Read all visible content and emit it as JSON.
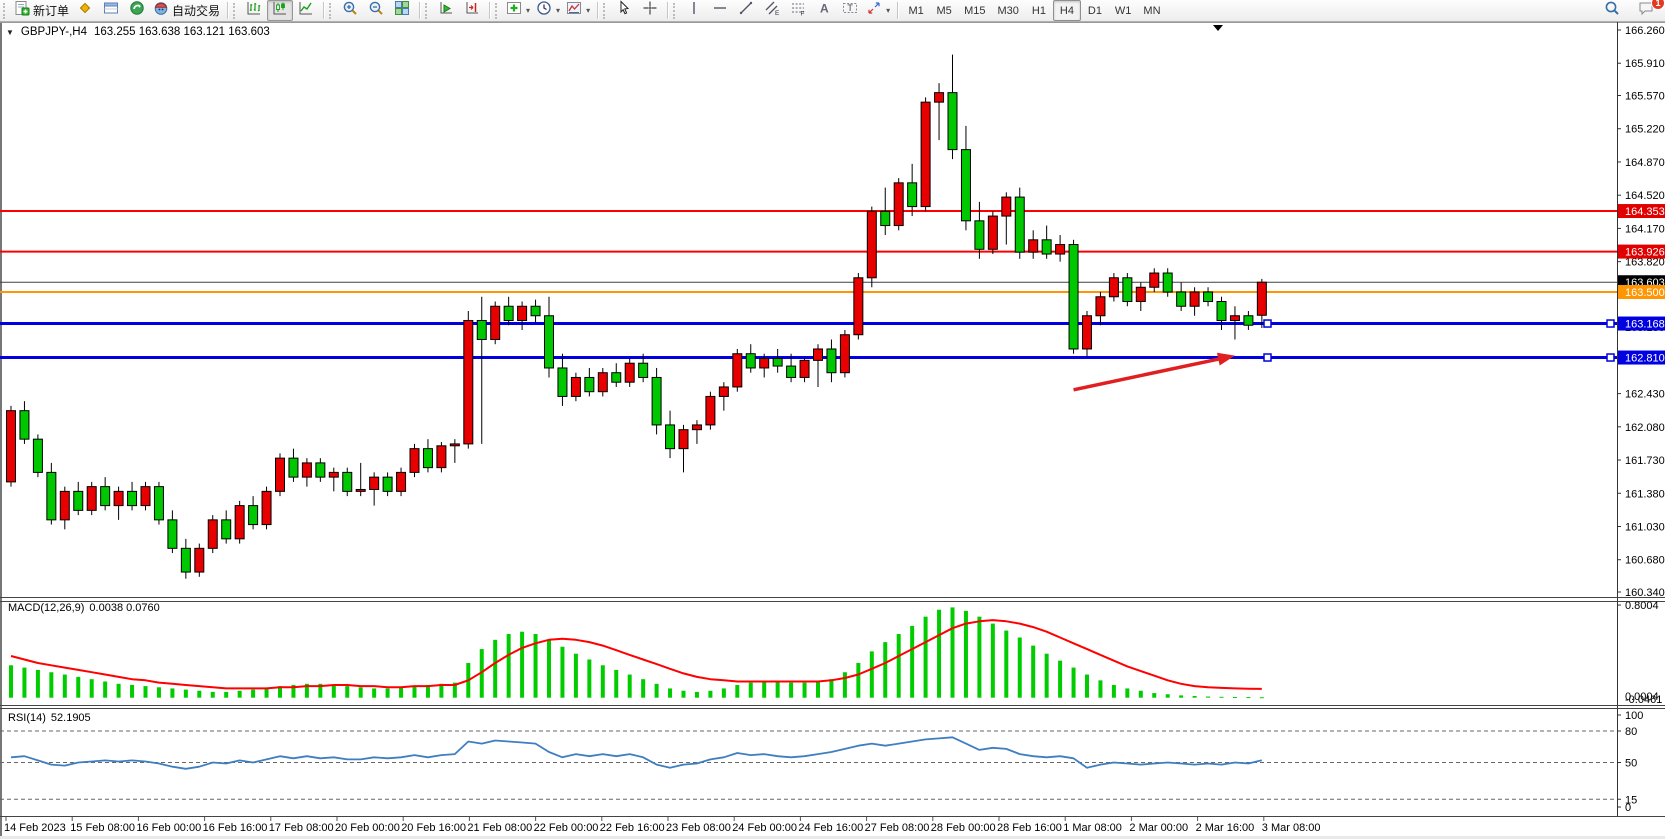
{
  "toolbar": {
    "groups": [
      {
        "name": "trade",
        "items": [
          {
            "name": "new-order",
            "icon": "new-order-icon",
            "label": "新订单"
          },
          {
            "name": "market-watch",
            "icon": "market-watch-icon"
          },
          {
            "name": "data-window",
            "icon": "data-window-icon"
          },
          {
            "name": "navigator",
            "icon": "navigator-icon"
          },
          {
            "name": "auto-trading",
            "icon": "auto-trading-icon",
            "label": "自动交易"
          }
        ]
      },
      {
        "name": "chart-type",
        "items": [
          {
            "name": "bar-chart",
            "icon": "bar-chart-icon"
          },
          {
            "name": "candlestick-chart",
            "icon": "candlestick-chart-icon",
            "active": true
          },
          {
            "name": "line-chart",
            "icon": "line-chart-icon"
          }
        ]
      },
      {
        "name": "zoom",
        "items": [
          {
            "name": "zoom-in",
            "icon": "zoom-in-icon"
          },
          {
            "name": "zoom-out",
            "icon": "zoom-out-icon"
          },
          {
            "name": "tile-windows",
            "icon": "tile-windows-icon"
          }
        ]
      },
      {
        "name": "scroll",
        "items": [
          {
            "name": "auto-scroll",
            "icon": "auto-scroll-icon"
          },
          {
            "name": "chart-shift",
            "icon": "chart-shift-icon"
          }
        ]
      },
      {
        "name": "chart-tools",
        "items": [
          {
            "name": "indicators",
            "icon": "indicators-icon",
            "dropdown": true
          },
          {
            "name": "periods",
            "icon": "periods-icon",
            "dropdown": true
          },
          {
            "name": "templates",
            "icon": "templates-icon",
            "dropdown": true
          }
        ]
      },
      {
        "name": "pointer",
        "items": [
          {
            "name": "cursor",
            "icon": "cursor-icon"
          },
          {
            "name": "crosshair",
            "icon": "crosshair-icon"
          }
        ]
      },
      {
        "name": "objects",
        "items": [
          {
            "name": "vertical-line",
            "icon": "vertical-line-icon"
          },
          {
            "name": "horizontal-line",
            "icon": "horizontal-line-icon"
          },
          {
            "name": "trendline",
            "icon": "trendline-icon"
          },
          {
            "name": "equidistant-channel",
            "icon": "equidistant-channel-icon"
          },
          {
            "name": "fibonacci",
            "icon": "fibonacci-icon"
          },
          {
            "name": "text",
            "icon": "text-icon"
          },
          {
            "name": "text-label",
            "icon": "text-label-icon"
          },
          {
            "name": "arrows",
            "icon": "arrows-icon",
            "dropdown": true
          }
        ]
      }
    ],
    "timeframes": {
      "options": [
        "M1",
        "M5",
        "M15",
        "M30",
        "H1",
        "H4",
        "D1",
        "W1",
        "MN"
      ],
      "active": "H4"
    },
    "right": {
      "notification_count": "1"
    }
  },
  "chart": {
    "collapse_glyph": "▼",
    "title": "GBPJPY-,H4",
    "ohlc": "163.255 163.638 163.121 163.603"
  },
  "colors": {
    "bull": "#E80000",
    "bear": "#00C800",
    "wick": "#000000",
    "macd_histogram": "#00CC00",
    "macd_signal": "#FF0000",
    "rsi_line": "#3E7EC1",
    "level_red": "#FF0000",
    "level_orange": "#FF9500",
    "level_blue": "#0000E0",
    "current_price_badge": "#000000",
    "arrow": "#E02020"
  },
  "chart_data": [
    {
      "type": "candlestick",
      "title": "GBPJPY-,H4",
      "last_ohlc": {
        "open": 163.255,
        "high": 163.638,
        "low": 163.121,
        "close": 163.603
      },
      "ylim": [
        160.34,
        166.26
      ],
      "bull_color": "#E80000",
      "bear_color": "#00C800",
      "y_ticks": [
        "166.260",
        "165.910",
        "165.570",
        "165.220",
        "164.870",
        "164.520",
        "164.170",
        "163.820",
        "163.470",
        "163.130",
        "162.780",
        "162.430",
        "162.080",
        "161.730",
        "161.380",
        "161.030",
        "160.680",
        "160.340"
      ],
      "x_labels": [
        "14 Feb 2023",
        "15 Feb 08:00",
        "16 Feb 00:00",
        "16 Feb 16:00",
        "17 Feb 08:00",
        "20 Feb 00:00",
        "20 Feb 16:00",
        "21 Feb 08:00",
        "22 Feb 00:00",
        "22 Feb 16:00",
        "23 Feb 08:00",
        "24 Feb 00:00",
        "24 Feb 16:00",
        "27 Feb 08:00",
        "28 Feb 00:00",
        "28 Feb 16:00",
        "1 Mar 08:00",
        "2 Mar 00:00",
        "2 Mar 16:00",
        "3 Mar 08:00"
      ],
      "levels": [
        {
          "price": 164.353,
          "label": "164.353",
          "color": "#FF0000",
          "width": 2,
          "badge": "#E00000"
        },
        {
          "price": 163.926,
          "label": "163.926",
          "color": "#FF0000",
          "width": 2,
          "badge": "#E00000"
        },
        {
          "price": 163.603,
          "label": "163.603",
          "color": "#404040",
          "width": 1,
          "badge": "#000000",
          "role": "current-price"
        },
        {
          "price": 163.5,
          "label": "163.500",
          "color": "#FF9500",
          "width": 2,
          "badge": "#FF9500"
        },
        {
          "price": 163.168,
          "label": "163.168",
          "color": "#0000E0",
          "width": 3,
          "badge": "#0000E0",
          "handles": true
        },
        {
          "price": 162.81,
          "label": "162.810",
          "color": "#0000E0",
          "width": 3,
          "badge": "#0000E0",
          "handles": true
        }
      ],
      "annotations": [
        {
          "type": "arrow",
          "from": {
            "bar": 79,
            "price": 162.47
          },
          "to": {
            "bar": 91,
            "price": 162.83
          },
          "color": "#E02020"
        }
      ],
      "candles": [
        [
          161.5,
          162.3,
          161.45,
          162.25
        ],
        [
          162.25,
          162.35,
          161.9,
          161.95
        ],
        [
          161.95,
          162.0,
          161.55,
          161.6
        ],
        [
          161.6,
          161.7,
          161.05,
          161.1
        ],
        [
          161.1,
          161.45,
          161.0,
          161.4
        ],
        [
          161.4,
          161.5,
          161.15,
          161.2
        ],
        [
          161.2,
          161.5,
          161.15,
          161.45
        ],
        [
          161.45,
          161.55,
          161.2,
          161.25
        ],
        [
          161.25,
          161.45,
          161.1,
          161.4
        ],
        [
          161.4,
          161.5,
          161.2,
          161.25
        ],
        [
          161.25,
          161.5,
          161.2,
          161.45
        ],
        [
          161.45,
          161.5,
          161.05,
          161.1
        ],
        [
          161.1,
          161.2,
          160.75,
          160.8
        ],
        [
          160.8,
          160.9,
          160.48,
          160.55
        ],
        [
          160.55,
          160.85,
          160.5,
          160.8
        ],
        [
          160.8,
          161.15,
          160.75,
          161.1
        ],
        [
          161.1,
          161.2,
          160.85,
          160.9
        ],
        [
          160.9,
          161.3,
          160.85,
          161.25
        ],
        [
          161.25,
          161.35,
          161.0,
          161.05
        ],
        [
          161.05,
          161.45,
          161.0,
          161.4
        ],
        [
          161.4,
          161.8,
          161.35,
          161.75
        ],
        [
          161.75,
          161.85,
          161.5,
          161.55
        ],
        [
          161.55,
          161.75,
          161.45,
          161.7
        ],
        [
          161.7,
          161.75,
          161.5,
          161.55
        ],
        [
          161.55,
          161.65,
          161.4,
          161.6
        ],
        [
          161.6,
          161.65,
          161.35,
          161.4
        ],
        [
          161.4,
          161.7,
          161.35,
          161.42
        ],
        [
          161.42,
          161.6,
          161.25,
          161.55
        ],
        [
          161.55,
          161.6,
          161.35,
          161.4
        ],
        [
          161.4,
          161.65,
          161.35,
          161.6
        ],
        [
          161.6,
          161.9,
          161.55,
          161.85
        ],
        [
          161.85,
          161.95,
          161.6,
          161.65
        ],
        [
          161.65,
          161.92,
          161.6,
          161.88
        ],
        [
          161.88,
          161.95,
          161.7,
          161.9
        ],
        [
          161.9,
          163.3,
          161.85,
          163.2
        ],
        [
          163.2,
          163.45,
          161.9,
          163.0
        ],
        [
          163.0,
          163.4,
          162.95,
          163.35
        ],
        [
          163.35,
          163.45,
          163.15,
          163.2
        ],
        [
          163.2,
          163.4,
          163.1,
          163.35
        ],
        [
          163.35,
          163.42,
          163.18,
          163.25
        ],
        [
          163.25,
          163.45,
          162.6,
          162.7
        ],
        [
          162.7,
          162.85,
          162.3,
          162.4
        ],
        [
          162.4,
          162.65,
          162.35,
          162.6
        ],
        [
          162.6,
          162.7,
          162.4,
          162.45
        ],
        [
          162.45,
          162.7,
          162.4,
          162.65
        ],
        [
          162.65,
          162.75,
          162.5,
          162.55
        ],
        [
          162.55,
          162.8,
          162.5,
          162.75
        ],
        [
          162.75,
          162.85,
          162.55,
          162.6
        ],
        [
          162.6,
          162.7,
          162.0,
          162.1
        ],
        [
          162.1,
          162.25,
          161.75,
          161.85
        ],
        [
          161.85,
          162.1,
          161.6,
          162.05
        ],
        [
          162.05,
          162.15,
          161.9,
          162.1
        ],
        [
          162.1,
          162.45,
          162.05,
          162.4
        ],
        [
          162.4,
          162.55,
          162.25,
          162.5
        ],
        [
          162.5,
          162.9,
          162.45,
          162.85
        ],
        [
          162.85,
          162.95,
          162.65,
          162.7
        ],
        [
          162.7,
          162.85,
          162.6,
          162.8
        ],
        [
          162.8,
          162.9,
          162.65,
          162.72
        ],
        [
          162.72,
          162.85,
          162.55,
          162.6
        ],
        [
          162.6,
          162.8,
          162.55,
          162.78
        ],
        [
          162.78,
          162.95,
          162.5,
          162.9
        ],
        [
          162.9,
          163.0,
          162.55,
          162.65
        ],
        [
          162.65,
          163.1,
          162.6,
          163.05
        ],
        [
          163.05,
          163.7,
          163.0,
          163.65
        ],
        [
          163.65,
          164.4,
          163.55,
          164.35
        ],
        [
          164.35,
          164.6,
          164.1,
          164.2
        ],
        [
          164.2,
          164.7,
          164.15,
          164.65
        ],
        [
          164.65,
          164.85,
          164.3,
          164.4
        ],
        [
          164.4,
          165.55,
          164.35,
          165.5
        ],
        [
          165.5,
          165.7,
          165.1,
          165.6
        ],
        [
          165.6,
          166.0,
          164.9,
          165.0
        ],
        [
          165.0,
          165.25,
          164.15,
          164.25
        ],
        [
          164.25,
          164.45,
          163.85,
          163.95
        ],
        [
          163.95,
          164.35,
          163.9,
          164.3
        ],
        [
          164.3,
          164.55,
          164.0,
          164.5
        ],
        [
          164.5,
          164.6,
          163.85,
          163.92
        ],
        [
          163.92,
          164.15,
          163.85,
          164.05
        ],
        [
          164.05,
          164.2,
          163.85,
          163.9
        ],
        [
          163.9,
          164.1,
          163.82,
          164.0
        ],
        [
          164.0,
          164.05,
          162.85,
          162.9
        ],
        [
          162.9,
          163.3,
          162.82,
          163.25
        ],
        [
          163.25,
          163.5,
          163.15,
          163.45
        ],
        [
          163.45,
          163.7,
          163.4,
          163.65
        ],
        [
          163.65,
          163.7,
          163.35,
          163.4
        ],
        [
          163.4,
          163.6,
          163.3,
          163.55
        ],
        [
          163.55,
          163.75,
          163.5,
          163.7
        ],
        [
          163.7,
          163.75,
          163.45,
          163.5
        ],
        [
          163.5,
          163.6,
          163.3,
          163.35
        ],
        [
          163.35,
          163.55,
          163.25,
          163.5
        ],
        [
          163.5,
          163.55,
          163.35,
          163.4
        ],
        [
          163.4,
          163.45,
          163.1,
          163.2
        ],
        [
          163.2,
          163.35,
          163.0,
          163.25
        ],
        [
          163.25,
          163.3,
          163.1,
          163.15
        ],
        [
          163.255,
          163.638,
          163.121,
          163.603
        ]
      ]
    },
    {
      "type": "macd",
      "label": "MACD(12,26,9)",
      "current_values_text": "0.0038 0.0760",
      "axis_max_label": "0.8004",
      "axis_min_labels": [
        "0.0004",
        "-0.0461"
      ],
      "ylim": [
        -0.0461,
        0.8004
      ],
      "histogram_color": "#00CC00",
      "signal_color": "#FF0000",
      "histogram": [
        0.28,
        0.26,
        0.24,
        0.22,
        0.2,
        0.18,
        0.16,
        0.14,
        0.12,
        0.11,
        0.1,
        0.09,
        0.08,
        0.07,
        0.06,
        0.05,
        0.05,
        0.06,
        0.07,
        0.08,
        0.1,
        0.11,
        0.12,
        0.12,
        0.11,
        0.1,
        0.09,
        0.08,
        0.08,
        0.09,
        0.1,
        0.11,
        0.12,
        0.13,
        0.3,
        0.42,
        0.5,
        0.55,
        0.57,
        0.55,
        0.5,
        0.44,
        0.38,
        0.33,
        0.28,
        0.24,
        0.2,
        0.16,
        0.12,
        0.08,
        0.06,
        0.05,
        0.06,
        0.08,
        0.11,
        0.13,
        0.14,
        0.14,
        0.13,
        0.13,
        0.14,
        0.16,
        0.22,
        0.3,
        0.4,
        0.48,
        0.55,
        0.62,
        0.7,
        0.76,
        0.78,
        0.75,
        0.7,
        0.64,
        0.58,
        0.52,
        0.45,
        0.38,
        0.32,
        0.26,
        0.2,
        0.15,
        0.11,
        0.08,
        0.06,
        0.04,
        0.03,
        0.02,
        0.015,
        0.01,
        0.008,
        0.006,
        0.005,
        0.0038
      ],
      "signal": [
        0.36,
        0.33,
        0.3,
        0.28,
        0.26,
        0.24,
        0.22,
        0.2,
        0.18,
        0.16,
        0.15,
        0.13,
        0.12,
        0.11,
        0.1,
        0.09,
        0.08,
        0.08,
        0.08,
        0.08,
        0.09,
        0.09,
        0.1,
        0.1,
        0.11,
        0.11,
        0.1,
        0.1,
        0.09,
        0.09,
        0.1,
        0.1,
        0.11,
        0.11,
        0.15,
        0.22,
        0.3,
        0.37,
        0.43,
        0.47,
        0.5,
        0.51,
        0.5,
        0.48,
        0.45,
        0.41,
        0.37,
        0.33,
        0.29,
        0.25,
        0.21,
        0.18,
        0.16,
        0.15,
        0.14,
        0.14,
        0.14,
        0.14,
        0.14,
        0.14,
        0.14,
        0.15,
        0.17,
        0.2,
        0.25,
        0.3,
        0.36,
        0.42,
        0.48,
        0.54,
        0.6,
        0.64,
        0.66,
        0.67,
        0.66,
        0.64,
        0.61,
        0.57,
        0.52,
        0.47,
        0.42,
        0.37,
        0.32,
        0.27,
        0.23,
        0.19,
        0.15,
        0.12,
        0.1,
        0.09,
        0.085,
        0.08,
        0.078,
        0.076
      ]
    },
    {
      "type": "rsi",
      "label": "RSI(14)",
      "current_value_text": "52.1905",
      "range": [
        0,
        100
      ],
      "levels": [
        "100",
        "80",
        "50",
        "15",
        "0"
      ],
      "dashed_levels": [
        80,
        50,
        15
      ],
      "line_color": "#3E7EC1",
      "values": [
        55,
        56,
        52,
        48,
        47,
        50,
        51,
        52,
        51,
        52,
        51,
        49,
        46,
        44,
        46,
        50,
        49,
        52,
        50,
        53,
        56,
        54,
        56,
        54,
        55,
        53,
        53,
        55,
        54,
        55,
        57,
        55,
        57,
        58,
        70,
        68,
        71,
        70,
        69,
        68,
        60,
        55,
        58,
        56,
        58,
        56,
        58,
        55,
        48,
        45,
        48,
        49,
        53,
        55,
        59,
        57,
        58,
        56,
        55,
        56,
        58,
        60,
        63,
        66,
        68,
        66,
        68,
        70,
        72,
        73,
        74,
        68,
        62,
        64,
        63,
        58,
        56,
        55,
        56,
        54,
        45,
        48,
        50,
        49,
        48,
        49,
        50,
        49,
        48,
        49,
        48,
        50,
        49,
        52.19
      ]
    }
  ]
}
